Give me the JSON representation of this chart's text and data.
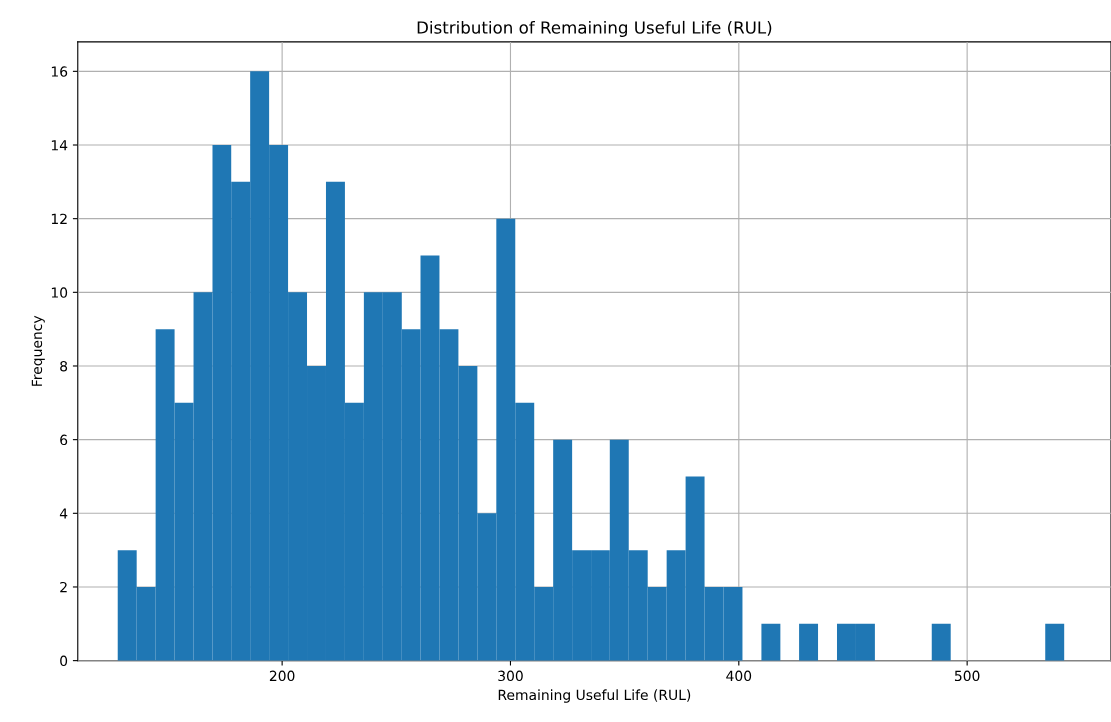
{
  "chart_data": {
    "type": "histogram",
    "title": "Distribution of Remaining Useful Life (RUL)",
    "xlabel": "Remaining Useful Life (RUL)",
    "ylabel": "Frequency",
    "bins": [
      128.0,
      136.3,
      144.6,
      152.9,
      161.2,
      169.5,
      177.7,
      186.0,
      194.3,
      202.6,
      210.9,
      219.2,
      227.5,
      235.8,
      244.1,
      252.4,
      260.6,
      268.9,
      277.2,
      285.5,
      293.8,
      302.1,
      310.4,
      318.7,
      327.0,
      335.3,
      343.5,
      351.8,
      360.1,
      368.4,
      376.7,
      385.0,
      393.3,
      401.6,
      409.9,
      418.2,
      426.4,
      434.7,
      443.0,
      451.3,
      459.6,
      467.9,
      476.2,
      484.5,
      492.8,
      501.1,
      509.3,
      517.6,
      525.9,
      534.2,
      542.5
    ],
    "values": [
      3,
      2,
      9,
      7,
      10,
      14,
      13,
      16,
      14,
      10,
      8,
      13,
      7,
      10,
      10,
      9,
      11,
      9,
      8,
      4,
      12,
      7,
      2,
      6,
      3,
      3,
      6,
      3,
      2,
      3,
      5,
      2,
      2,
      0,
      1,
      0,
      1,
      0,
      1,
      1,
      0,
      0,
      0,
      1,
      0,
      0,
      0,
      0,
      0,
      1
    ],
    "color": "#1f77b4",
    "xlim": [
      110.5,
      563
    ],
    "ylim": [
      0,
      16.8
    ],
    "xticks": [
      200,
      300,
      400,
      500
    ],
    "yticks": [
      0,
      2,
      4,
      6,
      8,
      10,
      12,
      14,
      16
    ],
    "grid": true
  }
}
